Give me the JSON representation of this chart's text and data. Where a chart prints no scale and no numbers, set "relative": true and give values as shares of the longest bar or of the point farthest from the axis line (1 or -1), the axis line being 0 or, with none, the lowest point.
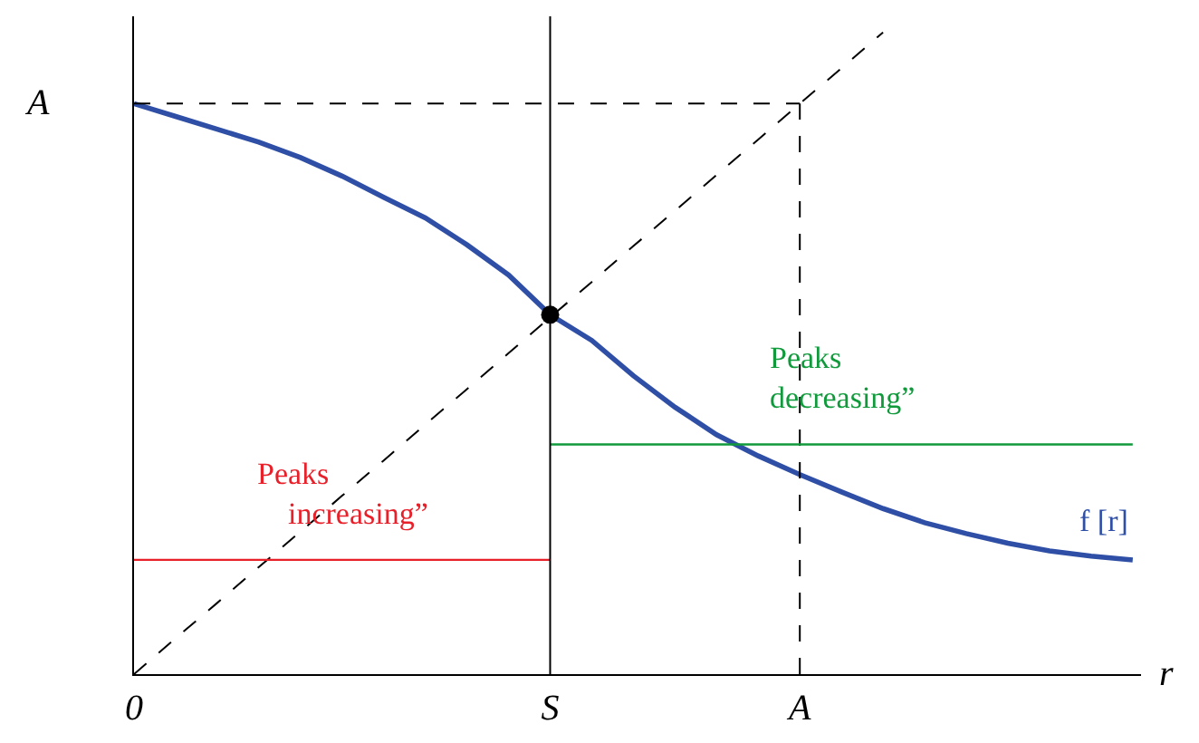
{
  "chart_data": {
    "type": "line",
    "relative": true,
    "xlabel": "r",
    "categories": [
      "0",
      null,
      null,
      null,
      null,
      null,
      null,
      null,
      null,
      null,
      "S",
      null,
      null,
      null,
      null,
      null,
      "A",
      null,
      null,
      null,
      null,
      null,
      null,
      null,
      null
    ],
    "annotations": [
      "A"
    ],
    "ref_lines": [
      {
        "axis": "x",
        "value": "S",
        "color": "#000000"
      }
    ],
    "series": [
      {
        "name": "f [r]",
        "color": "#2f4fa6",
        "values": [
          0.889,
          0.869,
          0.849,
          0.829,
          0.805,
          0.776,
          0.743,
          0.711,
          0.669,
          0.622,
          0.56,
          0.52,
          0.465,
          0.416,
          0.373,
          0.34,
          0.311,
          0.284,
          0.258,
          0.236,
          0.219,
          0.204,
          0.192,
          0.184,
          0.178
        ]
      },
      {
        "color": "#000000",
        "line_style": "dashed",
        "values": [
          0,
          0.056,
          0.111,
          0.167,
          0.222,
          0.278,
          0.333,
          0.389,
          0.444,
          0.5,
          0.556,
          0.611,
          0.667,
          0.722,
          0.778,
          0.833,
          0.889,
          0.944,
          1.0,
          null,
          null,
          null,
          null,
          null,
          null
        ]
      },
      {
        "color": "#000000",
        "line_style": "dashed",
        "values": [
          0.889,
          0.889,
          0.889,
          0.889,
          0.889,
          0.889,
          0.889,
          0.889,
          0.889,
          0.889,
          0.889,
          0.889,
          0.889,
          0.889,
          0.889,
          0.889,
          0.889,
          null,
          null,
          null,
          null,
          null,
          null,
          null,
          null
        ]
      },
      {
        "color": "#000000",
        "line_style": "dashed",
        "x": [
          "A",
          "A"
        ],
        "values": [
          0,
          0.889
        ]
      },
      {
        "name": "Peaks\n    increasing”",
        "color": "#e8202a",
        "values": [
          0.178,
          0.178,
          0.178,
          0.178,
          0.178,
          0.178,
          0.178,
          0.178,
          0.178,
          0.178,
          0.178,
          null,
          null,
          null,
          null,
          null,
          null,
          null,
          null,
          null,
          null,
          null,
          null,
          null,
          null
        ]
      },
      {
        "name": "Peaks\ndecreasing”",
        "color": "#109a3c",
        "values": [
          null,
          null,
          null,
          null,
          null,
          null,
          null,
          null,
          null,
          null,
          0.358,
          0.358,
          0.358,
          0.358,
          0.358,
          0.358,
          0.358,
          0.358,
          0.358,
          0.358,
          0.358,
          0.358,
          0.358,
          0.358,
          0.358
        ]
      },
      {
        "type": "scatter",
        "color": "#000000",
        "marker": "circle",
        "x": [
          "S"
        ],
        "values": [
          0.56
        ]
      }
    ]
  }
}
